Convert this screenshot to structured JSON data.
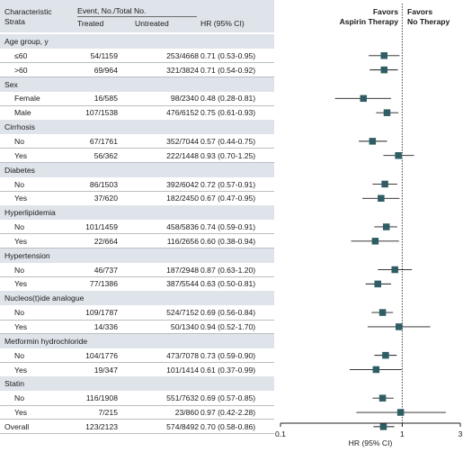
{
  "header": {
    "strata_line1": "Characteristic",
    "strata_line2": "Strata",
    "event_header": "Event, No./Total No.",
    "treated": "Treated",
    "untreated": "Untreated",
    "hr": "HR (95% CI)"
  },
  "favors": {
    "left_line1": "Favors",
    "left_line2": "Aspirin Therapy",
    "right_line1": "Favors",
    "right_line2": "No Therapy"
  },
  "chart_data": {
    "type": "forest",
    "xlabel": "HR (95% CI)",
    "xscale": "log",
    "xlim": [
      0.1,
      3
    ],
    "xticks": [
      0.1,
      1,
      3
    ],
    "xtick_labels": [
      "0.1",
      "1",
      "3"
    ],
    "reference_line": 1,
    "rows": [
      {
        "type": "group",
        "label": "Age group, y"
      },
      {
        "type": "sub",
        "label": "≤60",
        "treated": "54/1159",
        "untreated": "253/4668",
        "hr_text": "0.71 (0.53-0.95)",
        "hr": 0.71,
        "lo": 0.53,
        "hi": 0.95
      },
      {
        "type": "sub",
        "label": ">60",
        "treated": "69/964",
        "untreated": "321/3824",
        "hr_text": "0.71 (0.54-0.92)",
        "hr": 0.71,
        "lo": 0.54,
        "hi": 0.92
      },
      {
        "type": "group",
        "label": "Sex"
      },
      {
        "type": "sub",
        "label": "Female",
        "treated": "16/585",
        "untreated": "98/2340",
        "hr_text": "0.48 (0.28-0.81)",
        "hr": 0.48,
        "lo": 0.28,
        "hi": 0.81
      },
      {
        "type": "sub",
        "label": "Male",
        "treated": "107/1538",
        "untreated": "476/6152",
        "hr_text": "0.75 (0.61-0.93)",
        "hr": 0.75,
        "lo": 0.61,
        "hi": 0.93
      },
      {
        "type": "group",
        "label": "Cirrhosis"
      },
      {
        "type": "sub",
        "label": "No",
        "treated": "67/1761",
        "untreated": "352/7044",
        "hr_text": "0.57 (0.44-0.75)",
        "hr": 0.57,
        "lo": 0.44,
        "hi": 0.75
      },
      {
        "type": "sub",
        "label": "Yes",
        "treated": "56/362",
        "untreated": "222/1448",
        "hr_text": "0.93 (0.70-1.25)",
        "hr": 0.93,
        "lo": 0.7,
        "hi": 1.25
      },
      {
        "type": "group",
        "label": "Diabetes"
      },
      {
        "type": "sub",
        "label": "No",
        "treated": "86/1503",
        "untreated": "392/6042",
        "hr_text": "0.72 (0.57-0.91)",
        "hr": 0.72,
        "lo": 0.57,
        "hi": 0.91
      },
      {
        "type": "sub",
        "label": "Yes",
        "treated": "37/620",
        "untreated": "182/2450",
        "hr_text": "0.67 (0.47-0.95)",
        "hr": 0.67,
        "lo": 0.47,
        "hi": 0.95
      },
      {
        "type": "group",
        "label": "Hyperlipidemia"
      },
      {
        "type": "sub",
        "label": "No",
        "treated": "101/1459",
        "untreated": "458/5836",
        "hr_text": "0.74 (0.59-0.91)",
        "hr": 0.74,
        "lo": 0.59,
        "hi": 0.91
      },
      {
        "type": "sub",
        "label": "Yes",
        "treated": "22/664",
        "untreated": "116/2656",
        "hr_text": "0.60 (0.38-0.94)",
        "hr": 0.6,
        "lo": 0.38,
        "hi": 0.94
      },
      {
        "type": "group",
        "label": "Hypertension"
      },
      {
        "type": "sub",
        "label": "No",
        "treated": "46/737",
        "untreated": "187/2948",
        "hr_text": "0.87 (0.63-1.20)",
        "hr": 0.87,
        "lo": 0.63,
        "hi": 1.2
      },
      {
        "type": "sub",
        "label": "Yes",
        "treated": "77/1386",
        "untreated": "387/5544",
        "hr_text": "0.63 (0.50-0.81)",
        "hr": 0.63,
        "lo": 0.5,
        "hi": 0.81
      },
      {
        "type": "group",
        "label": "Nucleos(t)ide analogue"
      },
      {
        "type": "sub",
        "label": "No",
        "treated": "109/1787",
        "untreated": "524/7152",
        "hr_text": "0.69 (0.56-0.84)",
        "hr": 0.69,
        "lo": 0.56,
        "hi": 0.84
      },
      {
        "type": "sub",
        "label": "Yes",
        "treated": "14/336",
        "untreated": "50/1340",
        "hr_text": "0.94 (0.52-1.70)",
        "hr": 0.94,
        "lo": 0.52,
        "hi": 1.7
      },
      {
        "type": "group",
        "label": "Metformin hydrochloride"
      },
      {
        "type": "sub",
        "label": "No",
        "treated": "104/1776",
        "untreated": "473/7078",
        "hr_text": "0.73 (0.59-0.90)",
        "hr": 0.73,
        "lo": 0.59,
        "hi": 0.9
      },
      {
        "type": "sub",
        "label": "Yes",
        "treated": "19/347",
        "untreated": "101/1414",
        "hr_text": "0.61 (0.37-0.99)",
        "hr": 0.61,
        "lo": 0.37,
        "hi": 0.99
      },
      {
        "type": "group",
        "label": "Statin"
      },
      {
        "type": "sub",
        "label": "No",
        "treated": "116/1908",
        "untreated": "551/7632",
        "hr_text": "0.69 (0.57-0.85)",
        "hr": 0.69,
        "lo": 0.57,
        "hi": 0.85
      },
      {
        "type": "sub",
        "label": "Yes",
        "treated": "7/215",
        "untreated": "23/860",
        "hr_text": "0.97 (0.42-2.28)",
        "hr": 0.97,
        "lo": 0.42,
        "hi": 2.28
      },
      {
        "type": "overall",
        "label": "Overall",
        "treated": "123/2123",
        "untreated": "574/8492",
        "hr_text": "0.70 (0.58-0.86)",
        "hr": 0.7,
        "lo": 0.58,
        "hi": 0.86
      }
    ]
  }
}
